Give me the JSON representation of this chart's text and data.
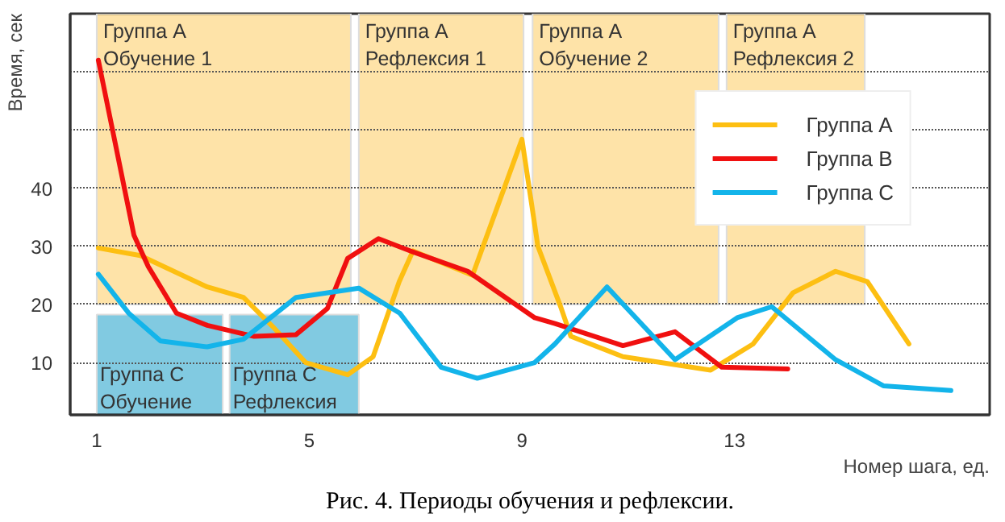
{
  "chart_data": {
    "type": "line",
    "title": "Рис. 4. Периоды обучения и рефлексии.",
    "xlabel": "Номер шага, ед.",
    "ylabel": "Время, сек",
    "xlim": [
      0.5,
      17.8
    ],
    "xticks": [
      1,
      5,
      9,
      13
    ],
    "ylim": [
      1,
      70
    ],
    "yticks": [
      10,
      20,
      30,
      40,
      {
        "value": 50,
        "label": null
      },
      {
        "value": 60,
        "label": null
      }
    ],
    "grid": "y",
    "legend": "top right",
    "line_style": "solid",
    "bands": [
      {
        "axis": "x",
        "from": 1,
        "to": 5.78,
        "label": "Группа A\nОбучение 1",
        "color": "#fcc23e"
      },
      {
        "axis": "x",
        "from": 5.93,
        "to": 9.03,
        "label": "Группа A\nРефлексия 1",
        "color": "#fcc23e"
      },
      {
        "axis": "x",
        "from": 9.2,
        "to": 12.7,
        "label": "Группа A\nОбучение 2",
        "color": "#fcc23e"
      },
      {
        "axis": "x",
        "from": 12.85,
        "to": 15.45,
        "label": "Группа A\nРефлексия 2",
        "color": "#fcc23e"
      },
      {
        "axis": "x",
        "from": 1,
        "to": 3.37,
        "label": "Группа C\nОбучение",
        "color": "#1a9fc9"
      },
      {
        "axis": "x",
        "from": 3.5,
        "to": 5.93,
        "label": "Группа C\nРефлексия",
        "color": "#1a9fc9"
      }
    ],
    "series": [
      {
        "name": "Группа A",
        "color": "#fdbf12",
        "x": [
          1.03,
          1.82,
          3.08,
          3.76,
          4.34,
          4.93,
          5.72,
          6.2,
          6.69,
          6.95,
          8.07,
          9.0,
          9.3,
          9.74,
          9.92,
          10.9,
          12.55,
          13.35,
          14.1,
          14.9,
          15.5,
          16.28
        ],
        "values": [
          29.7,
          28.4,
          23,
          21.2,
          15.9,
          10,
          7.9,
          11,
          23.9,
          29.2,
          25,
          48.4,
          30,
          19.3,
          14.5,
          11,
          8.7,
          13.2,
          22,
          25.7,
          23.9,
          13.2
        ]
      },
      {
        "name": "Группа B",
        "color": "#f01010",
        "x": [
          1.03,
          1.7,
          1.97,
          2.5,
          3.08,
          3.96,
          4.75,
          5.34,
          5.72,
          6.3,
          6.9,
          7.98,
          9.24,
          9.62,
          10.9,
          11.88,
          12.76,
          14.0
        ],
        "values": [
          62,
          31.9,
          26.5,
          18.5,
          16.4,
          14.5,
          14.8,
          19.3,
          27.9,
          31.3,
          29.2,
          25.7,
          17.7,
          16.7,
          12.9,
          15.3,
          9.2,
          8.9
        ]
      },
      {
        "name": "Группа C",
        "color": "#13b4ea",
        "x": [
          1.03,
          1.6,
          2.2,
          3.08,
          3.76,
          4.75,
          5.93,
          6.7,
          7.48,
          8.16,
          9.24,
          9.62,
          10.6,
          11.88,
          13.05,
          13.7,
          14.9,
          15.8,
          17.07
        ],
        "values": [
          25.2,
          18.5,
          13.7,
          12.7,
          14,
          21.2,
          22.8,
          18.5,
          9.2,
          7.3,
          10,
          13.2,
          23,
          10.5,
          17.7,
          19.6,
          10.5,
          6,
          5.2
        ]
      }
    ]
  }
}
